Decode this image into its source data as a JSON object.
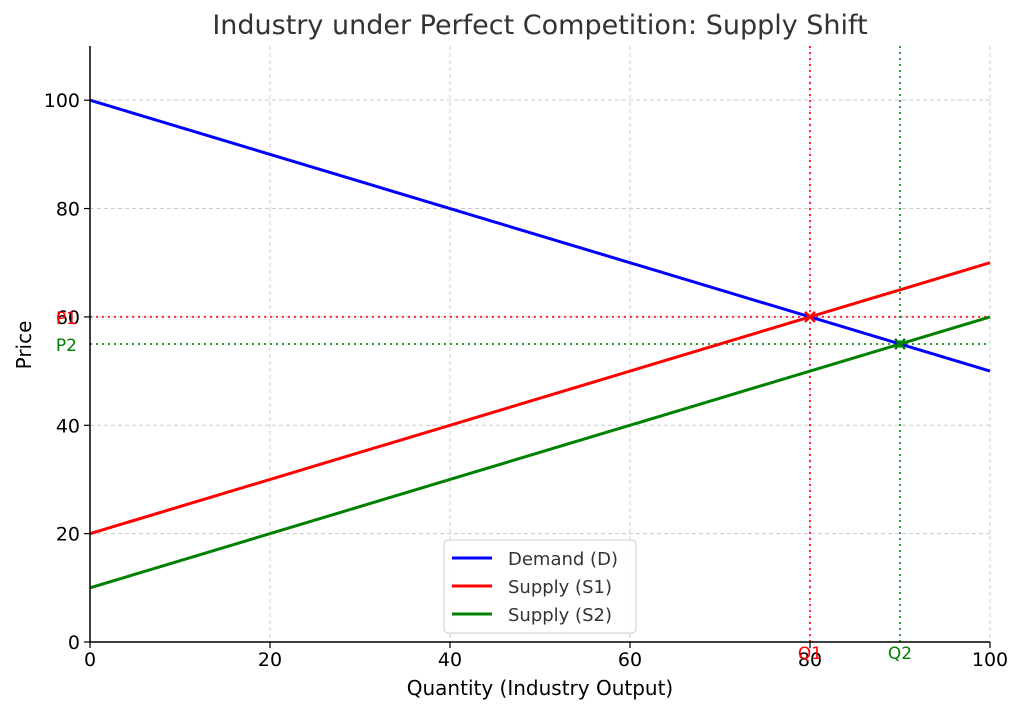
{
  "chart_data": {
    "type": "line",
    "title": "Industry under Perfect Competition: Supply Shift",
    "xlabel": "Quantity (Industry Output)",
    "ylabel": "Price",
    "xlim": [
      0,
      100
    ],
    "ylim": [
      0,
      110
    ],
    "x_ticks": [
      0,
      20,
      40,
      60,
      80,
      100
    ],
    "y_ticks": [
      0,
      20,
      40,
      60,
      80,
      100
    ],
    "grid": true,
    "legend_position": "bottom-center",
    "series": [
      {
        "name": "Demand (D)",
        "color": "#0000ff",
        "x": [
          0,
          100
        ],
        "y": [
          100,
          50
        ]
      },
      {
        "name": "Supply (S1)",
        "color": "#ff0000",
        "x": [
          0,
          100
        ],
        "y": [
          20,
          70
        ]
      },
      {
        "name": "Supply (S2)",
        "color": "#008000",
        "x": [
          0,
          100
        ],
        "y": [
          10,
          60
        ]
      }
    ],
    "equilibria": [
      {
        "price_label": "P1",
        "quantity_label": "Q1",
        "x": 80,
        "y": 60,
        "color": "#ff0000"
      },
      {
        "price_label": "P2",
        "quantity_label": "Q2",
        "x": 90,
        "y": 55,
        "color": "#008000"
      }
    ]
  }
}
